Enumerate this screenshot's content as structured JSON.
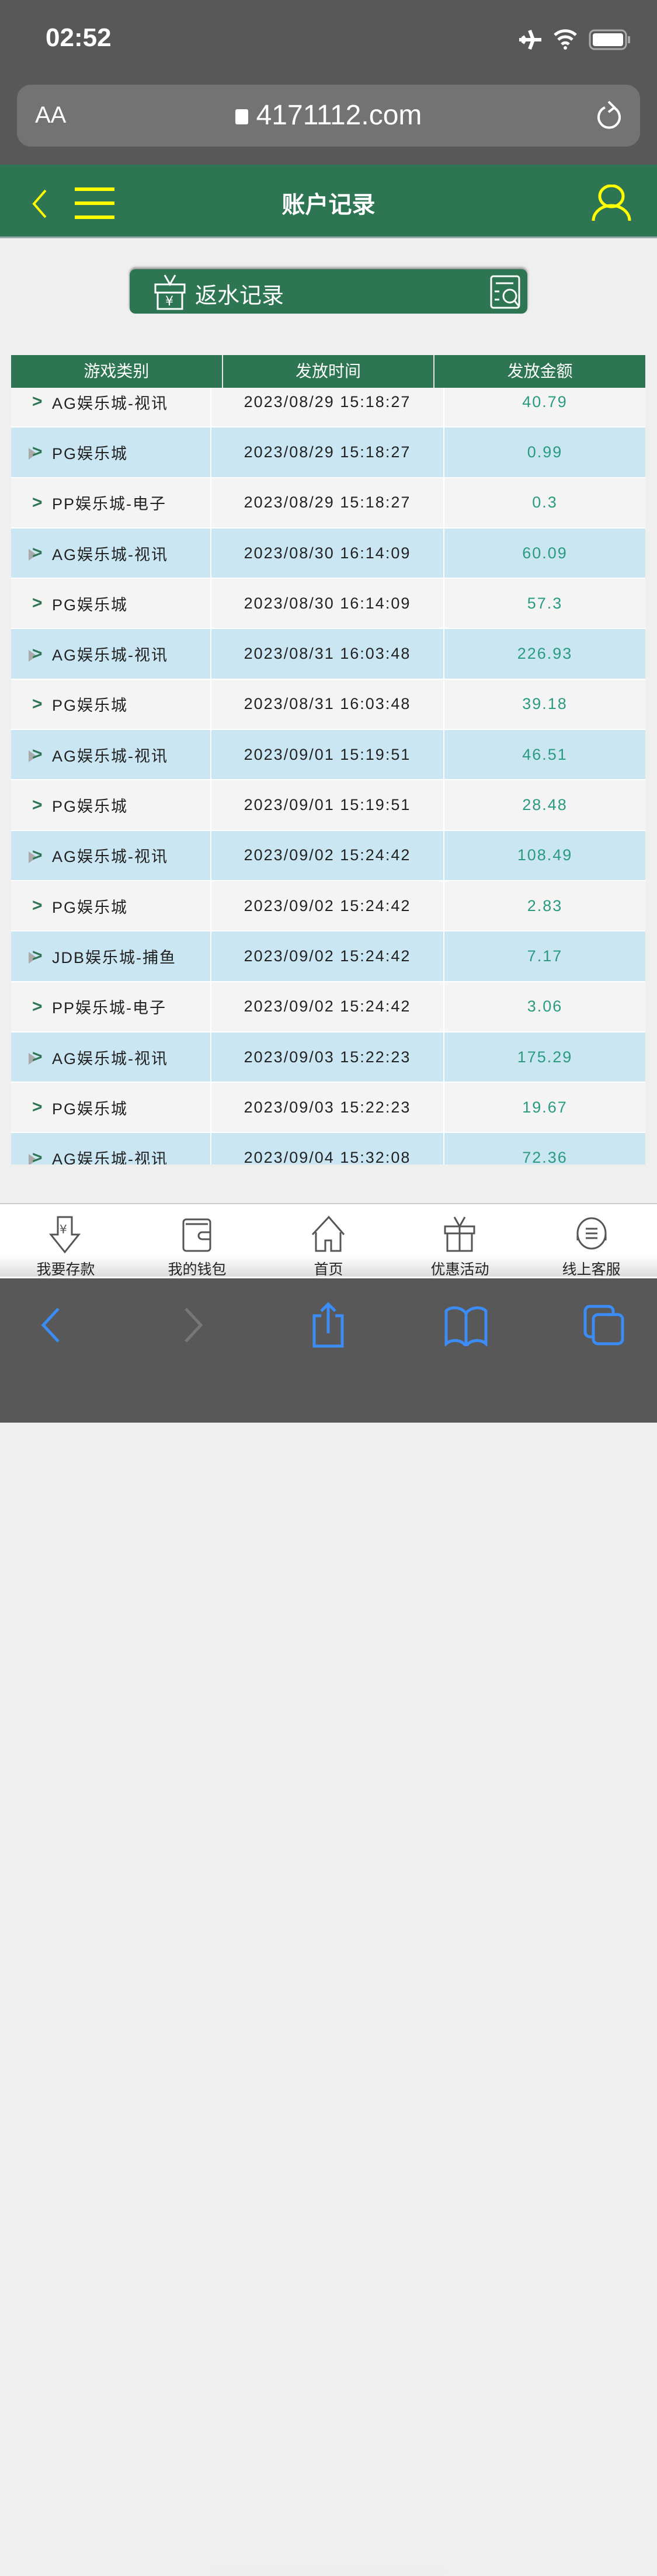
{
  "status": {
    "time": "02:52"
  },
  "browser": {
    "text_size": "AA",
    "url": "4171112.com"
  },
  "header": {
    "title": "账户记录"
  },
  "rebate_button": {
    "label": "返水记录"
  },
  "table": {
    "columns": [
      "游戏类别",
      "发放时间",
      "发放金额"
    ],
    "rows": [
      [
        "AG娱乐城-视讯",
        "2023/08/29 15:18:27",
        "40.79"
      ],
      [
        "PG娱乐城",
        "2023/08/29 15:18:27",
        "0.99"
      ],
      [
        "PP娱乐城-电子",
        "2023/08/29 15:18:27",
        "0.3"
      ],
      [
        "AG娱乐城-视讯",
        "2023/08/30 16:14:09",
        "60.09"
      ],
      [
        "PG娱乐城",
        "2023/08/30 16:14:09",
        "57.3"
      ],
      [
        "AG娱乐城-视讯",
        "2023/08/31 16:03:48",
        "226.93"
      ],
      [
        "PG娱乐城",
        "2023/08/31 16:03:48",
        "39.18"
      ],
      [
        "AG娱乐城-视讯",
        "2023/09/01 15:19:51",
        "46.51"
      ],
      [
        "PG娱乐城",
        "2023/09/01 15:19:51",
        "28.48"
      ],
      [
        "AG娱乐城-视讯",
        "2023/09/02 15:24:42",
        "108.49"
      ],
      [
        "PG娱乐城",
        "2023/09/02 15:24:42",
        "2.83"
      ],
      [
        "JDB娱乐城-捕鱼",
        "2023/09/02 15:24:42",
        "7.17"
      ],
      [
        "PP娱乐城-电子",
        "2023/09/02 15:24:42",
        "3.06"
      ],
      [
        "AG娱乐城-视讯",
        "2023/09/03 15:22:23",
        "175.29"
      ],
      [
        "PG娱乐城",
        "2023/09/03 15:22:23",
        "19.67"
      ],
      [
        "AG娱乐城-视讯",
        "2023/09/04 15:32:08",
        "72.36"
      ]
    ]
  },
  "bottom_nav": [
    {
      "label": "我要存款",
      "icon": "deposit-icon"
    },
    {
      "label": "我的钱包",
      "icon": "wallet-icon"
    },
    {
      "label": "首页",
      "icon": "home-icon"
    },
    {
      "label": "优惠活动",
      "icon": "gift-icon"
    },
    {
      "label": "线上客服",
      "icon": "support-icon"
    }
  ],
  "colors": {
    "brand": "#2e7553",
    "accent": "#ffff00",
    "amount": "#2a9a80",
    "row_alt": "#c9e6f2",
    "safari_blue": "#3b8cf5"
  }
}
